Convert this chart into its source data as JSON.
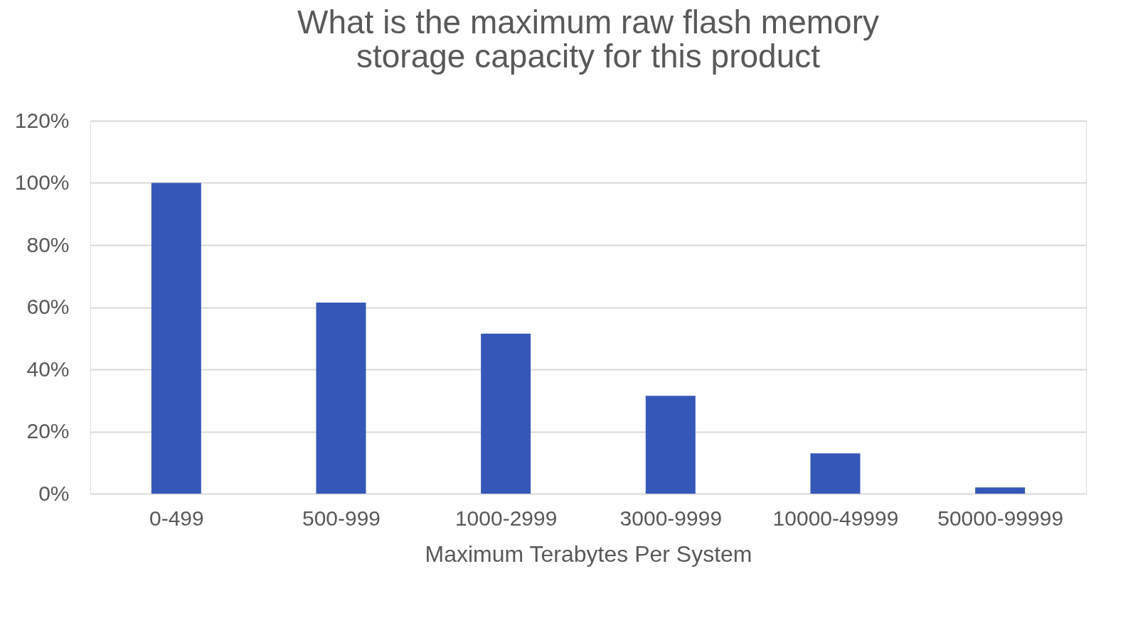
{
  "chart_data": {
    "type": "bar",
    "title": [
      "What is the maximum raw flash memory",
      "storage capacity for this product"
    ],
    "xlabel": "Maximum Terabytes Per System",
    "categories": [
      "0-499",
      "500-999",
      "1000-2999",
      "3000-9999",
      "10000-49999",
      "50000-99999"
    ],
    "values": [
      100,
      61.5,
      51.5,
      31.5,
      13,
      2
    ],
    "color": "#3558b8",
    "ylim": [
      0,
      120
    ],
    "yticks": [
      {
        "value": 0,
        "label": "0%"
      },
      {
        "value": 20,
        "label": "20%"
      },
      {
        "value": 40,
        "label": "40%"
      },
      {
        "value": 60,
        "label": "60%"
      },
      {
        "value": 80,
        "label": "80%"
      },
      {
        "value": 100,
        "label": "100%"
      },
      {
        "value": 120,
        "label": "120%"
      }
    ],
    "grid": "y"
  }
}
